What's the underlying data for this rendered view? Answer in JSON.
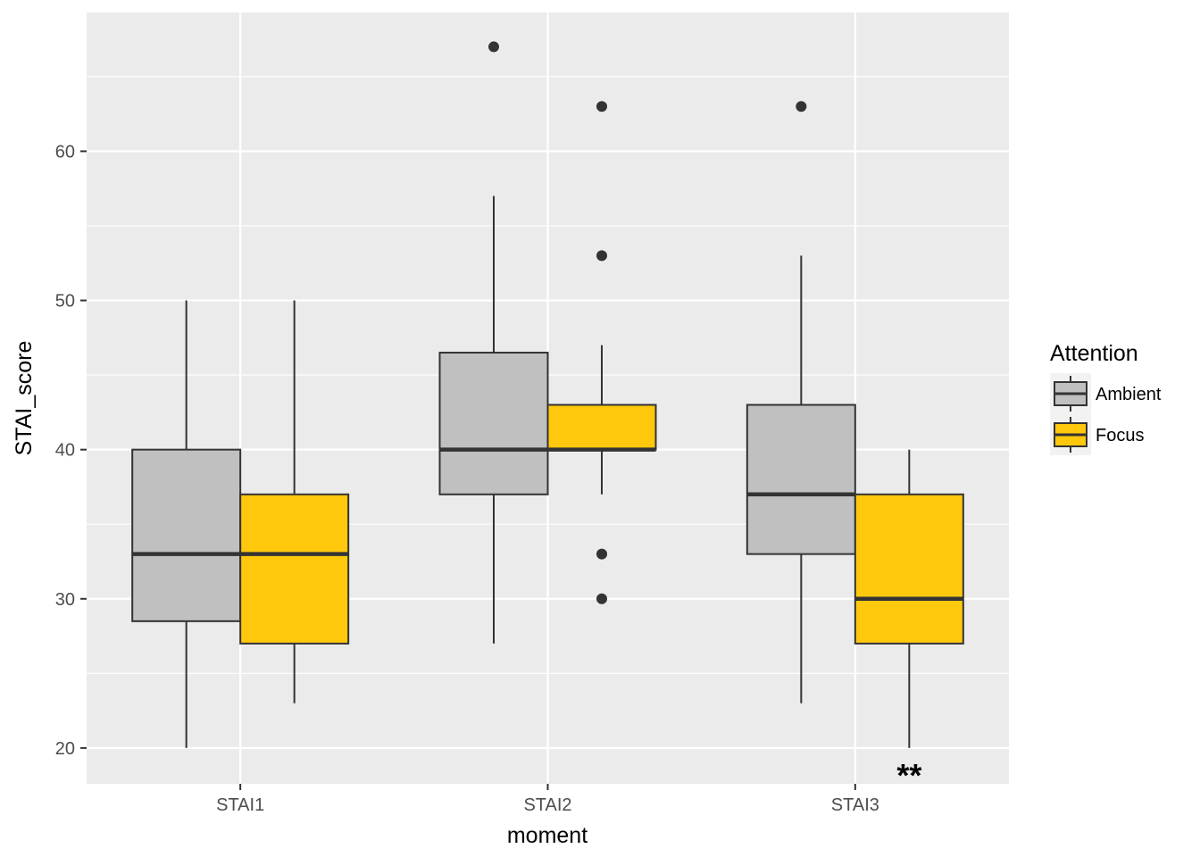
{
  "chart_data": {
    "type": "boxplot",
    "xlabel": "moment",
    "ylabel": "STAI_score",
    "categories": [
      "STAI1",
      "STAI2",
      "STAI3"
    ],
    "ylim": [
      17.6,
      69.3
    ],
    "yticks": [
      20,
      30,
      40,
      50,
      60
    ],
    "grid": true,
    "legend": {
      "title": "Attention",
      "position": "right",
      "entries": [
        "Ambient",
        "Focus"
      ]
    },
    "colors": {
      "Ambient": "#c0c0c0",
      "Focus": "#ffc80d",
      "panel": "#ebebeb",
      "outline": "#333333"
    },
    "series": [
      {
        "name": "Ambient",
        "boxes": [
          {
            "category": "STAI1",
            "lower_whisker": 20,
            "q1": 28.5,
            "median": 33,
            "q3": 40,
            "upper_whisker": 50,
            "outliers": []
          },
          {
            "category": "STAI2",
            "lower_whisker": 27,
            "q1": 37,
            "median": 40,
            "q3": 46.5,
            "upper_whisker": 57,
            "outliers": [
              67
            ]
          },
          {
            "category": "STAI3",
            "lower_whisker": 23,
            "q1": 33,
            "median": 37,
            "q3": 43,
            "upper_whisker": 53,
            "outliers": [
              63
            ]
          }
        ]
      },
      {
        "name": "Focus",
        "boxes": [
          {
            "category": "STAI1",
            "lower_whisker": 23,
            "q1": 27,
            "median": 33,
            "q3": 37,
            "upper_whisker": 50,
            "outliers": []
          },
          {
            "category": "STAI2",
            "lower_whisker": 37,
            "q1": 40,
            "median": 40,
            "q3": 43,
            "upper_whisker": 47,
            "outliers": [
              63,
              53,
              33,
              30
            ]
          },
          {
            "category": "STAI3",
            "lower_whisker": 20,
            "q1": 27,
            "median": 30,
            "q3": 37,
            "upper_whisker": 40,
            "outliers": []
          }
        ]
      }
    ],
    "annotations": [
      {
        "text": "**",
        "category": "STAI3",
        "series": "Focus",
        "y": 18.5
      }
    ]
  }
}
